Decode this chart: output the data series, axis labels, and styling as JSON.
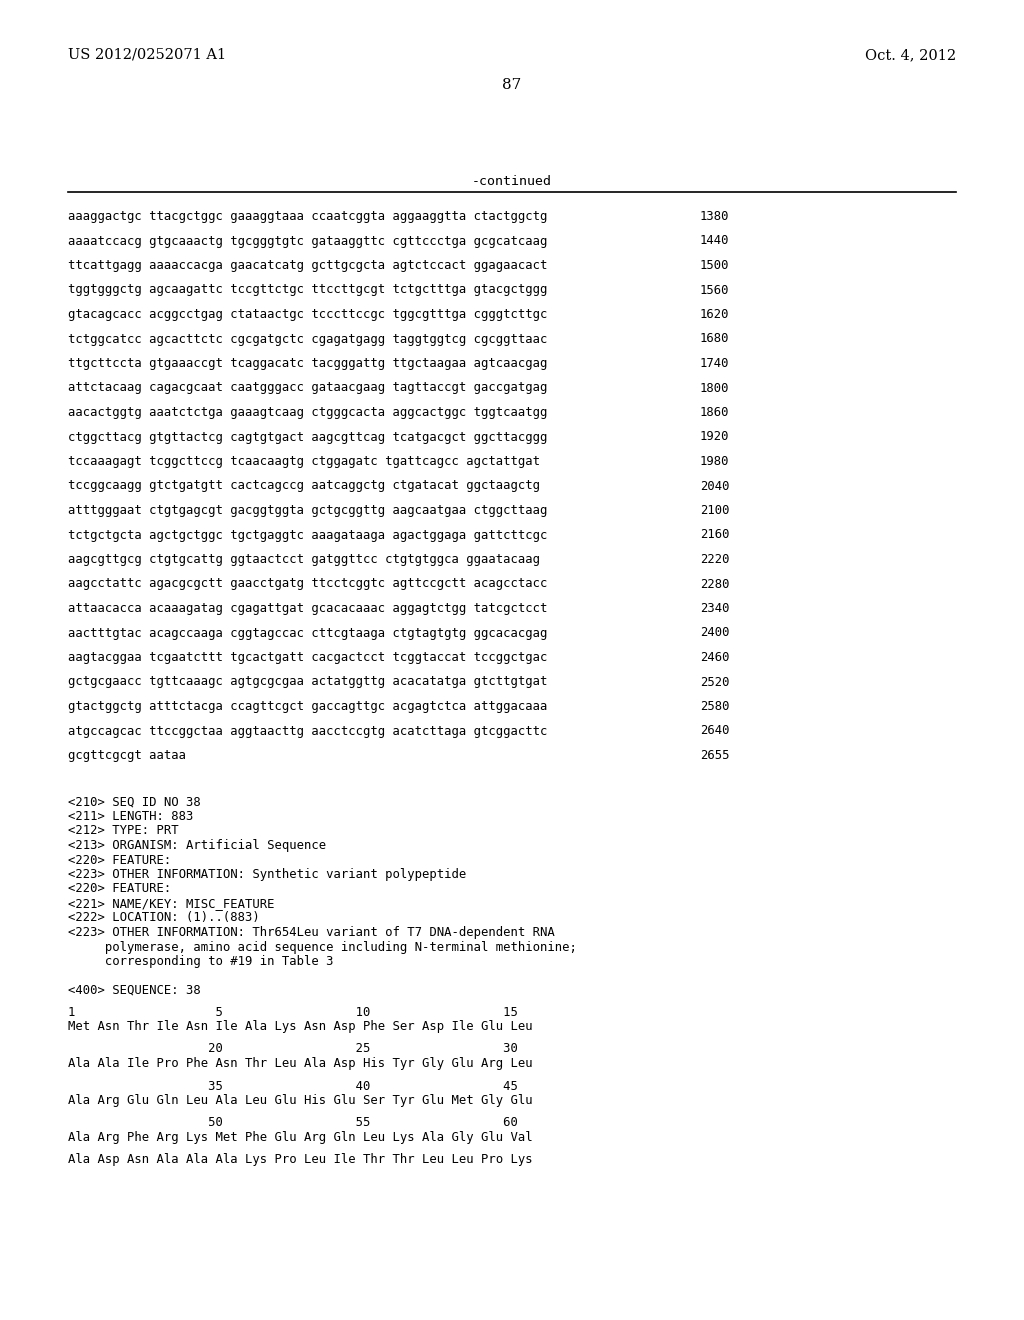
{
  "header_left": "US 2012/0252071 A1",
  "header_right": "Oct. 4, 2012",
  "page_number": "87",
  "continued_label": "-continued",
  "background_color": "#ffffff",
  "text_color": "#000000",
  "sequence_lines": [
    [
      "aaaggactgc ttacgctggc gaaaggtaaa ccaatcggta aggaaggtta ctactggctg",
      "1380"
    ],
    [
      "aaaatccacg gtgcaaactg tgcgggtgtc gataaggttc cgttccctga gcgcatcaag",
      "1440"
    ],
    [
      "ttcattgagg aaaaccacga gaacatcatg gcttgcgcta agtctccact ggagaacact",
      "1500"
    ],
    [
      "tggtgggctg agcaagattc tccgttctgc ttccttgcgt tctgctttga gtacgctggg",
      "1560"
    ],
    [
      "gtacagcacc acggcctgag ctataactgc tcccttccgc tggcgtttga cgggtcttgc",
      "1620"
    ],
    [
      "tctggcatcc agcacttctc cgcgatgctc cgagatgagg taggtggtcg cgcggttaac",
      "1680"
    ],
    [
      "ttgcttccta gtgaaaccgt tcaggacatc tacgggattg ttgctaagaa agtcaacgag",
      "1740"
    ],
    [
      "attctacaag cagacgcaat caatgggacc gataacgaag tagttaccgt gaccgatgag",
      "1800"
    ],
    [
      "aacactggtg aaatctctga gaaagtcaag ctgggcacta aggcactggc tggtcaatgg",
      "1860"
    ],
    [
      "ctggcttacg gtgttactcg cagtgtgact aagcgttcag tcatgacgct ggcttacggg",
      "1920"
    ],
    [
      "tccaaagagt tcggcttccg tcaacaagtg ctggagatc tgattcagcc agctattgat",
      "1980"
    ],
    [
      "tccggcaagg gtctgatgtt cactcagccg aatcaggctg ctgatacat ggctaagctg",
      "2040"
    ],
    [
      "atttgggaat ctgtgagcgt gacggtggta gctgcggttg aagcaatgaa ctggcttaag",
      "2100"
    ],
    [
      "tctgctgcta agctgctggc tgctgaggtc aaagataaga agactggaga gattcttcgc",
      "2160"
    ],
    [
      "aagcgttgcg ctgtgcattg ggtaactcct gatggttcc ctgtgtggca ggaatacaag",
      "2220"
    ],
    [
      "aagcctattc agacgcgctt gaacctgatg ttcctcggtc agttccgctt acagcctacc",
      "2280"
    ],
    [
      "attaacacca acaaagatag cgagattgat gcacacaaac aggagtctgg tatcgctcct",
      "2340"
    ],
    [
      "aactttgtac acagccaaga cggtagccac cttcgtaaga ctgtagtgtg ggcacacgag",
      "2400"
    ],
    [
      "aagtacggaa tcgaatcttt tgcactgatt cacgactcct tcggtaccat tccggctgac",
      "2460"
    ],
    [
      "gctgcgaacc tgttcaaagc agtgcgcgaa actatggttg acacatatga gtcttgtgat",
      "2520"
    ],
    [
      "gtactggctg atttctacga ccagttcgct gaccagttgc acgagtctca attggacaaa",
      "2580"
    ],
    [
      "atgccagcac ttccggctaa aggtaacttg aacctccgtg acatcttaga gtcggacttc",
      "2640"
    ],
    [
      "gcgttcgcgt aataa",
      "2655"
    ]
  ],
  "metadata_lines": [
    "<210> SEQ ID NO 38",
    "<211> LENGTH: 883",
    "<212> TYPE: PRT",
    "<213> ORGANISM: Artificial Sequence",
    "<220> FEATURE:",
    "<223> OTHER INFORMATION: Synthetic variant polypeptide",
    "<220> FEATURE:",
    "<221> NAME/KEY: MISC_FEATURE",
    "<222> LOCATION: (1)..(883)",
    "<223> OTHER INFORMATION: Thr654Leu variant of T7 DNA-dependent RNA",
    "     polymerase, amino acid sequence including N-terminal methionine;",
    "     corresponding to #19 in Table 3"
  ],
  "sequence_label": "<400> SEQUENCE: 38",
  "aa_blocks": [
    {
      "numbers": "1                   5                  10                  15",
      "sequence": "Met Asn Thr Ile Asn Ile Ala Lys Asn Asp Phe Ser Asp Ile Glu Leu"
    },
    {
      "numbers": "                   20                  25                  30",
      "sequence": "Ala Ala Ile Pro Phe Asn Thr Leu Ala Asp His Tyr Gly Glu Arg Leu"
    },
    {
      "numbers": "                   35                  40                  45",
      "sequence": "Ala Arg Glu Gln Leu Ala Leu Glu His Glu Ser Tyr Glu Met Gly Glu"
    },
    {
      "numbers": "                   50                  55                  60",
      "sequence": "Ala Arg Phe Arg Lys Met Phe Glu Arg Gln Leu Lys Ala Gly Glu Val"
    },
    {
      "numbers": "",
      "sequence": "Ala Asp Asn Ala Ala Ala Lys Pro Leu Ile Thr Thr Leu Leu Pro Lys"
    }
  ]
}
